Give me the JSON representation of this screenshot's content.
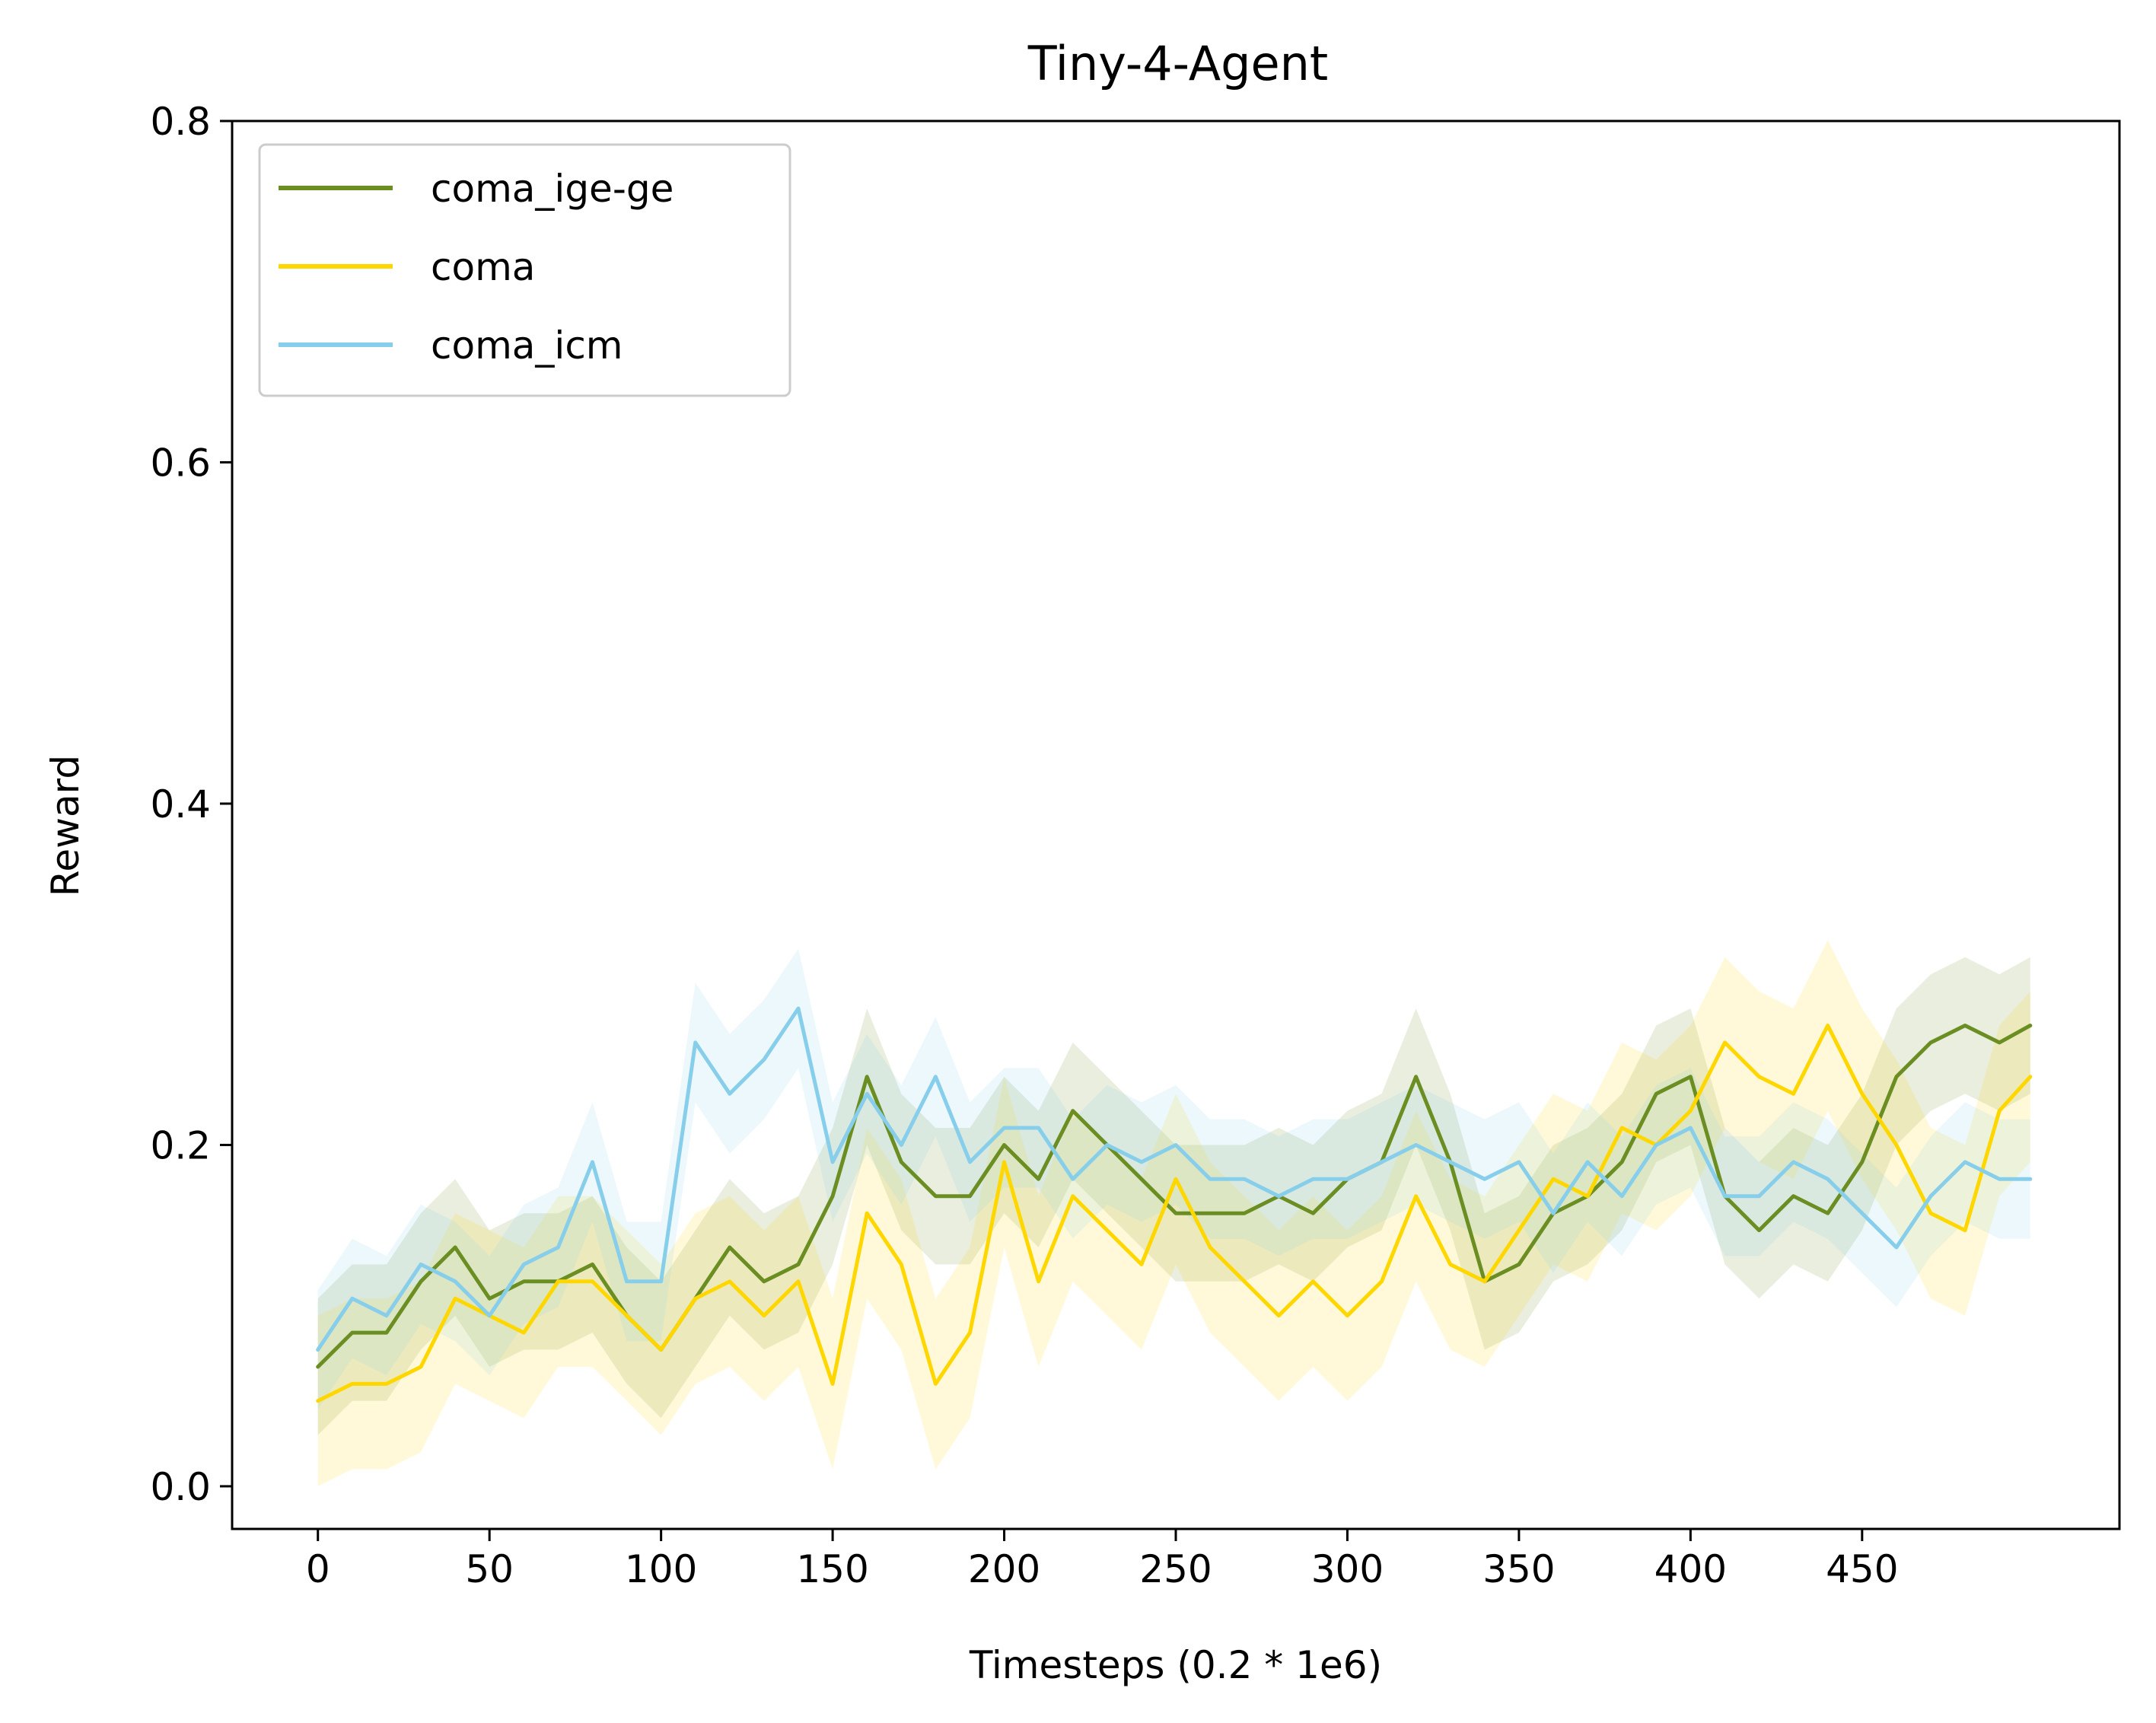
{
  "chart_data": {
    "type": "line",
    "title": "Tiny-4-Agent",
    "xlabel": "Timesteps (0.2 * 1e6)",
    "ylabel": "Reward",
    "xlim": [
      -25,
      525
    ],
    "ylim": [
      -0.025,
      0.8
    ],
    "xticks": [
      0,
      50,
      100,
      150,
      200,
      250,
      300,
      350,
      400,
      450
    ],
    "yticks": [
      0.0,
      0.2,
      0.4,
      0.6,
      0.8
    ],
    "xtick_labels": [
      "0",
      "50",
      "100",
      "150",
      "200",
      "250",
      "300",
      "350",
      "400",
      "450"
    ],
    "ytick_labels": [
      "0.0",
      "0.2",
      "0.4",
      "0.6",
      "0.8"
    ],
    "legend_position": "top-left",
    "grid": false,
    "x": [
      0,
      10,
      20,
      30,
      40,
      50,
      60,
      70,
      80,
      90,
      100,
      110,
      120,
      130,
      140,
      150,
      160,
      170,
      180,
      190,
      200,
      210,
      220,
      230,
      240,
      250,
      260,
      270,
      280,
      290,
      300,
      310,
      320,
      330,
      340,
      350,
      360,
      370,
      380,
      390,
      400,
      410,
      420,
      430,
      440,
      450,
      460,
      470,
      480,
      490,
      499
    ],
    "series": [
      {
        "name": "coma_ige-ge",
        "color": "#6b8e23",
        "band": 0.04,
        "values": [
          0.07,
          0.09,
          0.09,
          0.12,
          0.14,
          0.11,
          0.12,
          0.12,
          0.13,
          0.1,
          0.08,
          0.11,
          0.14,
          0.12,
          0.13,
          0.17,
          0.24,
          0.19,
          0.17,
          0.17,
          0.2,
          0.18,
          0.22,
          0.2,
          0.18,
          0.16,
          0.16,
          0.16,
          0.17,
          0.16,
          0.18,
          0.19,
          0.24,
          0.19,
          0.12,
          0.13,
          0.16,
          0.17,
          0.19,
          0.23,
          0.24,
          0.17,
          0.15,
          0.17,
          0.16,
          0.19,
          0.24,
          0.26,
          0.27,
          0.26,
          0.27
        ]
      },
      {
        "name": "coma",
        "color": "#ffd700",
        "band": 0.05,
        "values": [
          0.05,
          0.06,
          0.06,
          0.07,
          0.11,
          0.1,
          0.09,
          0.12,
          0.12,
          0.1,
          0.08,
          0.11,
          0.12,
          0.1,
          0.12,
          0.06,
          0.16,
          0.13,
          0.06,
          0.09,
          0.19,
          0.12,
          0.17,
          0.15,
          0.13,
          0.18,
          0.14,
          0.12,
          0.1,
          0.12,
          0.1,
          0.12,
          0.17,
          0.13,
          0.12,
          0.15,
          0.18,
          0.17,
          0.21,
          0.2,
          0.22,
          0.26,
          0.24,
          0.23,
          0.27,
          0.23,
          0.2,
          0.16,
          0.15,
          0.22,
          0.24
        ]
      },
      {
        "name": "coma_icm",
        "color": "#87ceeb",
        "band": 0.035,
        "values": [
          0.08,
          0.11,
          0.1,
          0.13,
          0.12,
          0.1,
          0.13,
          0.14,
          0.19,
          0.12,
          0.12,
          0.26,
          0.23,
          0.25,
          0.28,
          0.19,
          0.23,
          0.2,
          0.24,
          0.19,
          0.21,
          0.21,
          0.18,
          0.2,
          0.19,
          0.2,
          0.18,
          0.18,
          0.17,
          0.18,
          0.18,
          0.19,
          0.2,
          0.19,
          0.18,
          0.19,
          0.16,
          0.19,
          0.17,
          0.2,
          0.21,
          0.17,
          0.17,
          0.19,
          0.18,
          0.16,
          0.14,
          0.17,
          0.19,
          0.18,
          0.18
        ]
      }
    ]
  }
}
